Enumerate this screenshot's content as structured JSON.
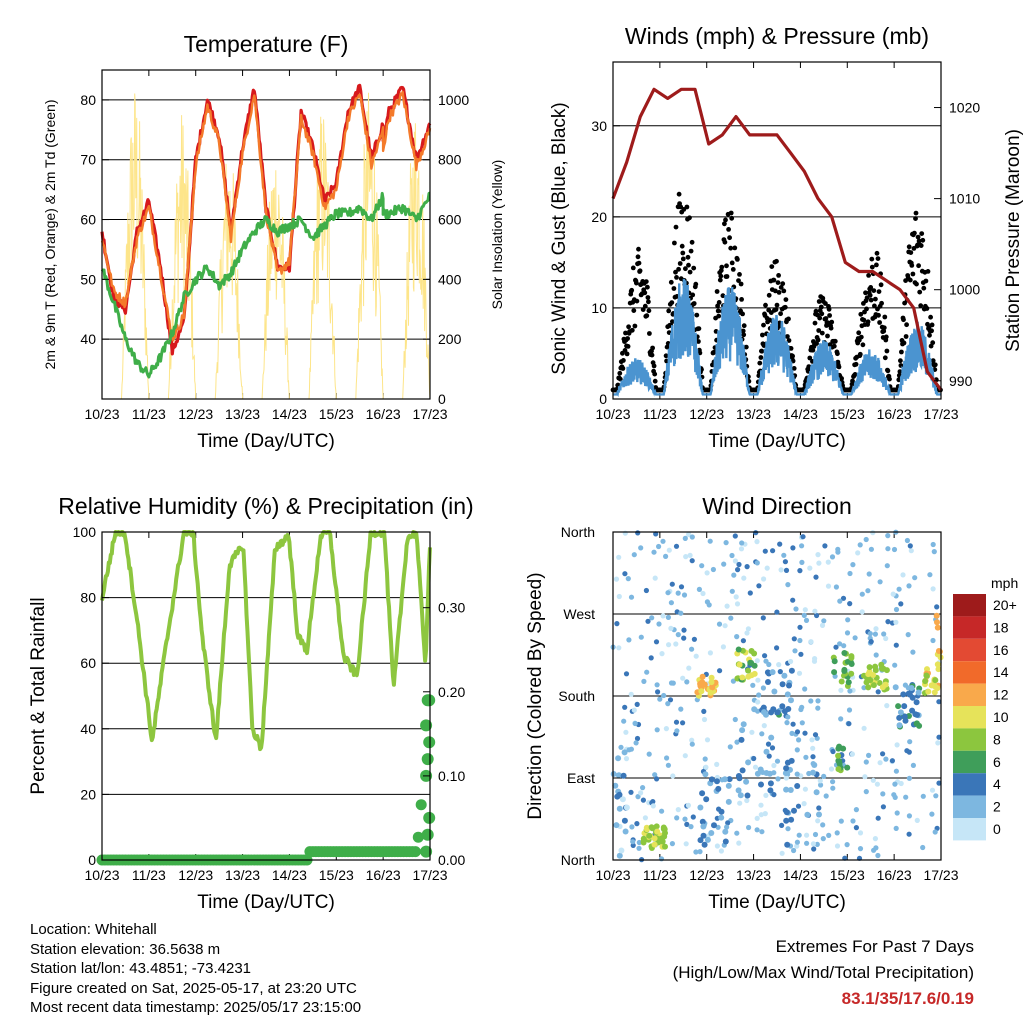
{
  "colors": {
    "temp_2m": "#d7191c",
    "temp_9m": "#f47a2a",
    "dewpoint": "#3fae49",
    "solar": "#fde58a",
    "sustained_wind": "#4b94d0",
    "gust": "#000000",
    "pressure": "#9e1b1b",
    "humidity": "#8dc63f",
    "precip": "#3fae49",
    "extremes_values": "#c62828"
  },
  "x_ticks": [
    "10/23",
    "11/23",
    "12/23",
    "13/23",
    "14/23",
    "15/23",
    "16/23",
    "17/23"
  ],
  "x_axis_label": "Time (Day/UTC)",
  "chart_data": [
    {
      "id": "temperature",
      "type": "line",
      "title": "Temperature (F)",
      "ylabel": "2m & 9m T (Red, Orange) & 2m Td (Green)",
      "y2label": "Solar Insolation (Yellow)",
      "ylim": [
        30,
        85
      ],
      "yticks": [
        40,
        50,
        60,
        70,
        80
      ],
      "y2lim": [
        0,
        1100
      ],
      "y2ticks": [
        0,
        200,
        400,
        600,
        800,
        1000
      ],
      "grid": "horizontal",
      "x_hours": [
        0,
        6,
        12,
        18,
        24,
        30,
        36,
        42,
        48,
        54,
        60,
        66,
        72,
        78,
        84,
        90,
        96,
        102,
        108,
        114,
        120,
        126,
        132,
        138,
        144
      ],
      "series": [
        {
          "key": "temp_2m",
          "values": [
            58,
            47,
            45,
            58,
            63,
            52,
            38,
            43,
            70,
            80,
            74,
            58,
            72,
            82,
            62,
            52,
            52,
            78,
            72,
            63,
            66,
            78,
            82,
            70,
            76
          ]
        },
        {
          "key": "temp_9m",
          "values": [
            57,
            48,
            46,
            57,
            62,
            51,
            40,
            44,
            69,
            79,
            73,
            57,
            71,
            81,
            61,
            51,
            53,
            77,
            71,
            62,
            65,
            77,
            81,
            69,
            75
          ]
        },
        {
          "key": "dewpoint",
          "values": [
            52,
            46,
            40,
            36,
            34,
            37,
            41,
            47,
            50,
            52,
            49,
            51,
            55,
            58,
            60,
            58,
            59,
            60,
            57,
            59,
            61,
            61,
            62,
            60,
            64
          ]
        }
      ],
      "solar_days": [
        0,
        1,
        2,
        3,
        4,
        5,
        6
      ],
      "solar_peaks": [
        1080,
        980,
        880,
        900,
        1000,
        1050,
        1020
      ]
    },
    {
      "id": "winds",
      "type": "scatter",
      "title": "Winds (mph) & Pressure (mb)",
      "ylabel": "Sonic Wind & Gust (Blue, Black)",
      "y2label": "Station Pressure (Maroon)",
      "ylim": [
        0,
        37
      ],
      "yticks": [
        0,
        10,
        20,
        30
      ],
      "y2lim": [
        988,
        1025
      ],
      "y2ticks": [
        990,
        1000,
        1010,
        1020
      ],
      "grid": "horizontal",
      "wind_day_peaks": [
        4,
        13,
        12,
        9,
        6,
        5,
        8,
        14
      ],
      "gust_day_peaks": [
        7,
        23,
        23,
        17,
        12,
        9,
        22,
        20
      ],
      "pressure_hours": [
        0,
        6,
        12,
        18,
        24,
        30,
        36,
        42,
        48,
        54,
        60,
        66,
        72,
        78,
        84,
        90,
        96,
        102,
        108,
        114,
        120,
        126,
        132,
        138,
        144
      ],
      "pressure": [
        1010,
        1014,
        1019,
        1022,
        1021,
        1022,
        1022,
        1016,
        1017,
        1019,
        1017,
        1017,
        1017,
        1015,
        1013,
        1010,
        1008,
        1003,
        1002,
        1002,
        1001,
        1000,
        998,
        991,
        989
      ]
    },
    {
      "id": "humidity",
      "type": "line",
      "title": "Relative Humidity (%) & Precipitation (in)",
      "ylabel": "Percent & Total Rainfall",
      "ylim": [
        0,
        100
      ],
      "yticks": [
        0,
        20,
        40,
        60,
        80,
        100
      ],
      "y2lim": [
        0,
        0.39
      ],
      "y2ticks": [
        0.0,
        0.1,
        0.2,
        0.3
      ],
      "y2ticklabels": [
        "0.00",
        "0.10",
        "0.20",
        "0.30"
      ],
      "grid": "horizontal",
      "rh_hours": [
        0,
        6,
        10,
        16,
        22,
        28,
        36,
        40,
        44,
        50,
        56,
        62,
        66,
        70,
        76,
        82,
        86,
        90,
        96,
        100,
        106,
        112,
        118,
        124,
        128,
        134,
        138,
        142,
        144
      ],
      "rh": [
        80,
        100,
        100,
        70,
        36,
        65,
        100,
        100,
        68,
        36,
        90,
        96,
        40,
        34,
        95,
        99,
        68,
        64,
        99,
        100,
        62,
        56,
        100,
        100,
        52,
        98,
        100,
        60,
        96
      ],
      "precip_hours": [
        0,
        90,
        91,
        138,
        139,
        140,
        141,
        142,
        143,
        144
      ],
      "precip": [
        0.0,
        0.0,
        0.01,
        0.01,
        0.03,
        0.06,
        0.1,
        0.12,
        0.14,
        0.19
      ]
    },
    {
      "id": "direction",
      "type": "scatter",
      "title": "Wind Direction",
      "ylabel": "Direction (Colored By Speed)",
      "yticklabels": [
        "North",
        "East",
        "South",
        "West",
        "North"
      ],
      "ylim": [
        0,
        360
      ],
      "grid": "horizontal",
      "legend_title": "mph",
      "legend_labels": [
        "20+",
        "18",
        "16",
        "14",
        "12",
        "10",
        "8",
        "6",
        "4",
        "2",
        "0"
      ],
      "legend_colors": [
        "#9e1b1b",
        "#c62828",
        "#e34a33",
        "#f16a2a",
        "#f9a94b",
        "#e6e35a",
        "#8cc63e",
        "#3f9e5a",
        "#3a76b8",
        "#7db7e0",
        "#c6e6f7"
      ],
      "clusters": [
        {
          "x": 0.15,
          "y": 60,
          "n": 18,
          "spread": [
            0.15,
            60
          ],
          "speed": 2
        },
        {
          "x": 0.9,
          "y": 25,
          "n": 35,
          "spread": [
            0.25,
            12
          ],
          "speed": 9
        },
        {
          "x": 2.0,
          "y": 190,
          "n": 30,
          "spread": [
            0.2,
            12
          ],
          "speed": 11
        },
        {
          "x": 2.1,
          "y": 55,
          "n": 25,
          "spread": [
            0.4,
            40
          ],
          "speed": 3
        },
        {
          "x": 2.85,
          "y": 215,
          "n": 22,
          "spread": [
            0.2,
            18
          ],
          "speed": 8
        },
        {
          "x": 3.0,
          "y": 120,
          "n": 25,
          "spread": [
            0.4,
            50
          ],
          "speed": 3
        },
        {
          "x": 3.6,
          "y": 180,
          "n": 20,
          "spread": [
            0.3,
            30
          ],
          "speed": 4
        },
        {
          "x": 4.0,
          "y": 60,
          "n": 20,
          "spread": [
            0.4,
            50
          ],
          "speed": 3
        },
        {
          "x": 4.9,
          "y": 210,
          "n": 20,
          "spread": [
            0.2,
            20
          ],
          "speed": 7
        },
        {
          "x": 4.9,
          "y": 110,
          "n": 12,
          "spread": [
            0.1,
            15
          ],
          "speed": 6
        },
        {
          "x": 5.6,
          "y": 200,
          "n": 30,
          "spread": [
            0.25,
            15
          ],
          "speed": 9
        },
        {
          "x": 6.3,
          "y": 170,
          "n": 30,
          "spread": [
            0.3,
            25
          ],
          "speed": 4
        },
        {
          "x": 6.8,
          "y": 195,
          "n": 20,
          "spread": [
            0.15,
            15
          ],
          "speed": 10
        },
        {
          "x": 6.95,
          "y": 240,
          "n": 8,
          "spread": [
            0.05,
            30
          ],
          "speed": 12
        }
      ]
    }
  ],
  "info": {
    "location": "Location: Whitehall",
    "elevation": "Station elevation: 36.5638 m",
    "latlon": "Station lat/lon: 43.4851; -73.4231",
    "created": "Figure created on Sat, 2025-05-17, at 23:20 UTC",
    "recent": "Most recent data timestamp: 2025/05/17 23:15:00"
  },
  "extremes": {
    "title": "Extremes For Past 7 Days",
    "subtitle": "(High/Low/Max Wind/Total Precipitation)",
    "values": "83.1/35/17.6/0.19"
  }
}
